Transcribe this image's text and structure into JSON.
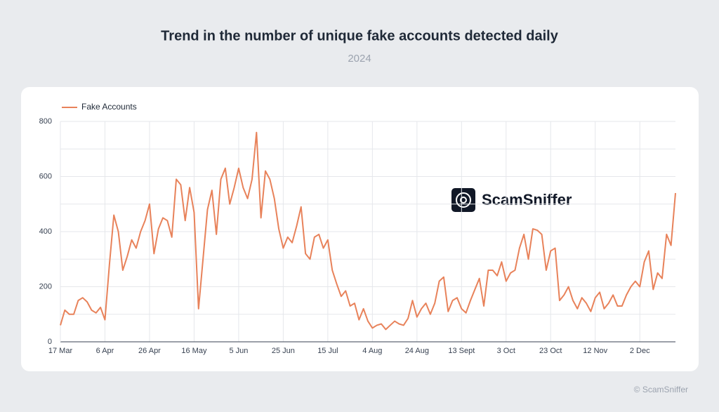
{
  "chart_data": {
    "type": "line",
    "title": "Trend in the number of unique fake accounts detected daily",
    "subtitle": "2024",
    "watermark": "ScamSniffer",
    "footer": "© ScamSniffer",
    "legend_position": "top-left",
    "grid": true,
    "categories": [
      "17 Mar",
      null,
      null,
      null,
      null,
      null,
      null,
      null,
      null,
      null,
      "6 Apr",
      null,
      null,
      null,
      null,
      null,
      null,
      null,
      null,
      null,
      "26 Apr",
      null,
      null,
      null,
      null,
      null,
      null,
      null,
      null,
      null,
      "16 May",
      null,
      null,
      null,
      null,
      null,
      null,
      null,
      null,
      null,
      "5 Jun",
      null,
      null,
      null,
      null,
      null,
      null,
      null,
      null,
      null,
      "25 Jun",
      null,
      null,
      null,
      null,
      null,
      null,
      null,
      null,
      null,
      "15 Jul",
      null,
      null,
      null,
      null,
      null,
      null,
      null,
      null,
      null,
      "4 Aug",
      null,
      null,
      null,
      null,
      null,
      null,
      null,
      null,
      null,
      "24 Aug",
      null,
      null,
      null,
      null,
      null,
      null,
      null,
      null,
      null,
      "13 Sept",
      null,
      null,
      null,
      null,
      null,
      null,
      null,
      null,
      null,
      "3 Oct",
      null,
      null,
      null,
      null,
      null,
      null,
      null,
      null,
      null,
      "23 Oct",
      null,
      null,
      null,
      null,
      null,
      null,
      null,
      null,
      null,
      "12 Nov",
      null,
      null,
      null,
      null,
      null,
      null,
      null,
      null,
      null,
      "2 Dec",
      null,
      null,
      null,
      null,
      null,
      null,
      null,
      null
    ],
    "series": [
      {
        "name": "Fake Accounts",
        "color": "#e8825a",
        "values": [
          60,
          115,
          100,
          100,
          150,
          160,
          145,
          115,
          105,
          125,
          80,
          280,
          460,
          400,
          260,
          310,
          370,
          340,
          400,
          440,
          500,
          320,
          410,
          450,
          440,
          380,
          590,
          570,
          440,
          560,
          470,
          120,
          300,
          480,
          550,
          390,
          590,
          630,
          500,
          560,
          630,
          560,
          520,
          590,
          760,
          450,
          620,
          590,
          520,
          410,
          340,
          380,
          360,
          420,
          490,
          320,
          300,
          380,
          390,
          340,
          370,
          260,
          210,
          165,
          185,
          130,
          140,
          80,
          120,
          75,
          50,
          60,
          65,
          45,
          60,
          75,
          65,
          60,
          85,
          150,
          90,
          120,
          140,
          100,
          140,
          220,
          235,
          110,
          150,
          160,
          120,
          105,
          150,
          190,
          230,
          130,
          260,
          260,
          240,
          290,
          220,
          250,
          260,
          340,
          390,
          300,
          410,
          405,
          390,
          260,
          330,
          340,
          150,
          170,
          200,
          150,
          120,
          160,
          140,
          110,
          160,
          180,
          120,
          140,
          170,
          130,
          130,
          170,
          200,
          220,
          200,
          290,
          330,
          190,
          250,
          230,
          390,
          350,
          540
        ]
      }
    ],
    "ylim": [
      0,
      800
    ],
    "yticks": [
      0,
      200,
      400,
      600,
      800
    ],
    "y_minor_ticks": [
      100,
      300,
      500,
      700
    ]
  }
}
